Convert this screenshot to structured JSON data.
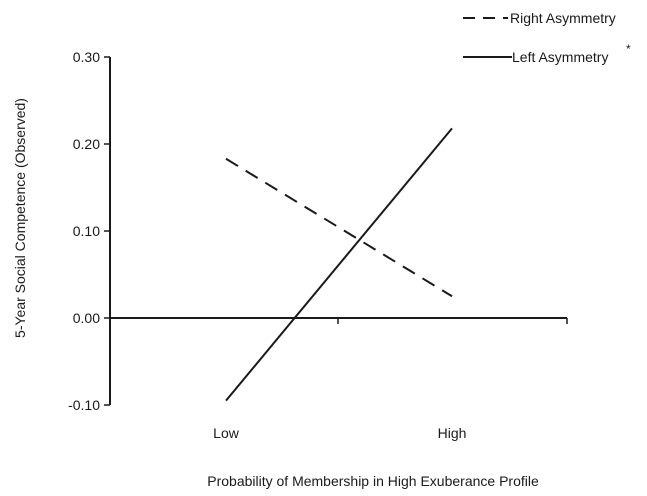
{
  "chart_data": {
    "type": "line",
    "title": "",
    "xlabel": "Probability of Membership in High Exuberance Profile",
    "ylabel": "5-Year Social Competence (Observed)",
    "categories": [
      "Low",
      "High"
    ],
    "ylim": [
      -0.1,
      0.3
    ],
    "yticks": [
      -0.1,
      0.0,
      0.1,
      0.2,
      0.3
    ],
    "ytick_labels": [
      "-0.10",
      "0.00",
      "0.10",
      "0.20",
      "0.30"
    ],
    "grid": false,
    "legend_position": "top-right",
    "series": [
      {
        "name": "Right Asymmetry",
        "line_style": "dashed",
        "values": [
          0.183,
          0.025
        ]
      },
      {
        "name": "Left Asymmetry",
        "note": "*",
        "line_style": "solid",
        "values": [
          -0.095,
          0.218
        ]
      }
    ],
    "colors": {
      "line": "#1a1a1a",
      "axis": "#1a1a1a"
    }
  }
}
